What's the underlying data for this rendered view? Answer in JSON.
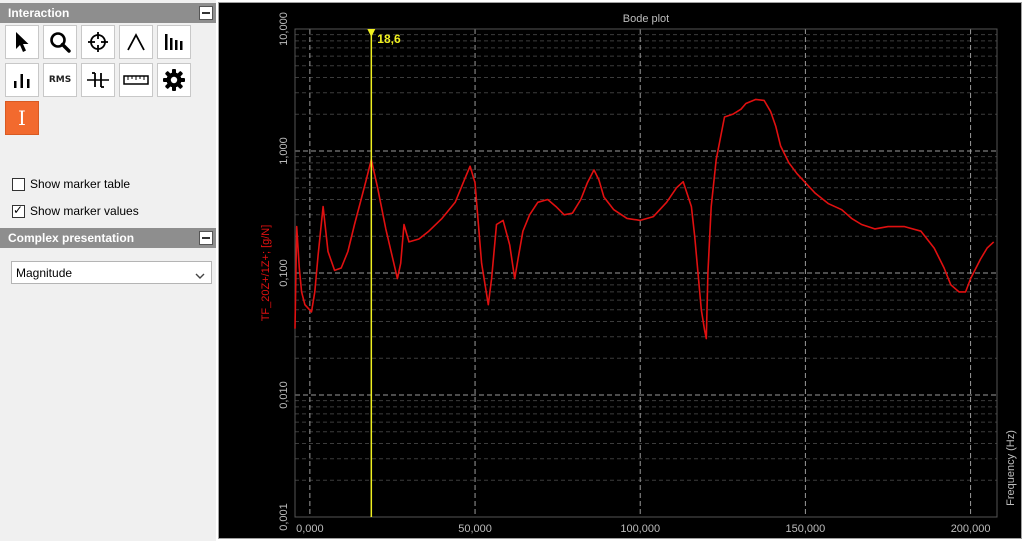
{
  "interaction_panel": {
    "title": "Interaction",
    "tools": [
      {
        "name": "pointer-icon"
      },
      {
        "name": "zoom-icon"
      },
      {
        "name": "crosshair-icon"
      },
      {
        "name": "peak-icon"
      },
      {
        "name": "harmonic-bars-icon"
      },
      {
        "name": "band-bars-icon"
      },
      {
        "name": "rms-icon",
        "label": "RMS"
      },
      {
        "name": "delta-marker-icon"
      },
      {
        "name": "ruler-icon"
      },
      {
        "name": "gear-icon"
      },
      {
        "name": "cursor-marker-icon",
        "label": "I",
        "active": true
      }
    ]
  },
  "options": {
    "show_marker_table": {
      "label": "Show marker table",
      "checked": false
    },
    "show_marker_values": {
      "label": "Show marker values",
      "checked": true
    }
  },
  "complex_panel": {
    "title": "Complex presentation",
    "selected": "Magnitude"
  },
  "colors": {
    "plot_background": "#000000",
    "trace": "#e01010",
    "marker": "#f0f020",
    "active_tool": "#f26a2e"
  },
  "chart_data": {
    "type": "line",
    "title": "Bode plot",
    "ylabel": "TF_20Z+/1Z+; [g/N]",
    "xlabel": "Frequency (Hz)",
    "y_scale": "log",
    "xlim": [
      -4500,
      208000
    ],
    "ylim": [
      0.001,
      10
    ],
    "x_ticks": [
      0,
      50000,
      100000,
      150000,
      200000
    ],
    "x_tick_labels": [
      "0,000",
      "50,000",
      "100,000",
      "150,000",
      "200,000"
    ],
    "y_ticks": [
      10,
      1,
      0.1,
      0.01,
      0.001
    ],
    "y_tick_labels": [
      "10,000",
      "1,000",
      "0,100",
      "0,010",
      "0,001"
    ],
    "grid": true,
    "marker": {
      "x": 18600,
      "label": "18,6"
    },
    "series": [
      {
        "x": [
          -4500,
          -4000,
          -3200,
          -2500,
          -1500,
          500,
          1500,
          2500,
          4000,
          5500,
          7500,
          9500,
          11500,
          13500,
          15500,
          17000,
          18600,
          20500,
          23000,
          26500,
          27500,
          28500,
          30000,
          33000,
          36000,
          40000,
          44000,
          47000,
          48500,
          50000,
          52000,
          54000,
          55000,
          56500,
          58500,
          60500,
          62000,
          63000,
          64500,
          66500,
          69000,
          72000,
          74500,
          77000,
          79500,
          82000,
          84000,
          86000,
          87500,
          89000,
          92000,
          96000,
          100000,
          104000,
          108000,
          111000,
          113000,
          115500,
          116500,
          117500,
          118500,
          119500,
          120000,
          120500,
          121500,
          123000,
          125500,
          128000,
          130500,
          132000,
          135000,
          137500,
          139500,
          141000,
          142500,
          145000,
          147500,
          150000,
          153000,
          157000,
          161000,
          164000,
          167000,
          171000,
          175000,
          180000,
          185000,
          189000,
          192000,
          194000,
          196500,
          198500,
          200000,
          203000,
          205000,
          207000
        ],
        "y": [
          0.035,
          0.24,
          0.11,
          0.07,
          0.055,
          0.048,
          0.07,
          0.14,
          0.35,
          0.15,
          0.105,
          0.11,
          0.15,
          0.25,
          0.4,
          0.57,
          0.85,
          0.5,
          0.23,
          0.09,
          0.12,
          0.25,
          0.18,
          0.19,
          0.22,
          0.28,
          0.38,
          0.6,
          0.75,
          0.55,
          0.12,
          0.055,
          0.09,
          0.25,
          0.27,
          0.17,
          0.09,
          0.13,
          0.22,
          0.3,
          0.38,
          0.4,
          0.35,
          0.3,
          0.31,
          0.4,
          0.55,
          0.7,
          0.58,
          0.42,
          0.33,
          0.28,
          0.27,
          0.29,
          0.38,
          0.5,
          0.56,
          0.35,
          0.2,
          0.1,
          0.05,
          0.034,
          0.029,
          0.1,
          0.35,
          0.85,
          1.9,
          2.0,
          2.2,
          2.45,
          2.65,
          2.6,
          2.1,
          1.6,
          1.1,
          0.8,
          0.65,
          0.55,
          0.45,
          0.37,
          0.33,
          0.28,
          0.25,
          0.23,
          0.24,
          0.24,
          0.22,
          0.16,
          0.11,
          0.08,
          0.07,
          0.07,
          0.09,
          0.13,
          0.16,
          0.18
        ]
      }
    ]
  }
}
